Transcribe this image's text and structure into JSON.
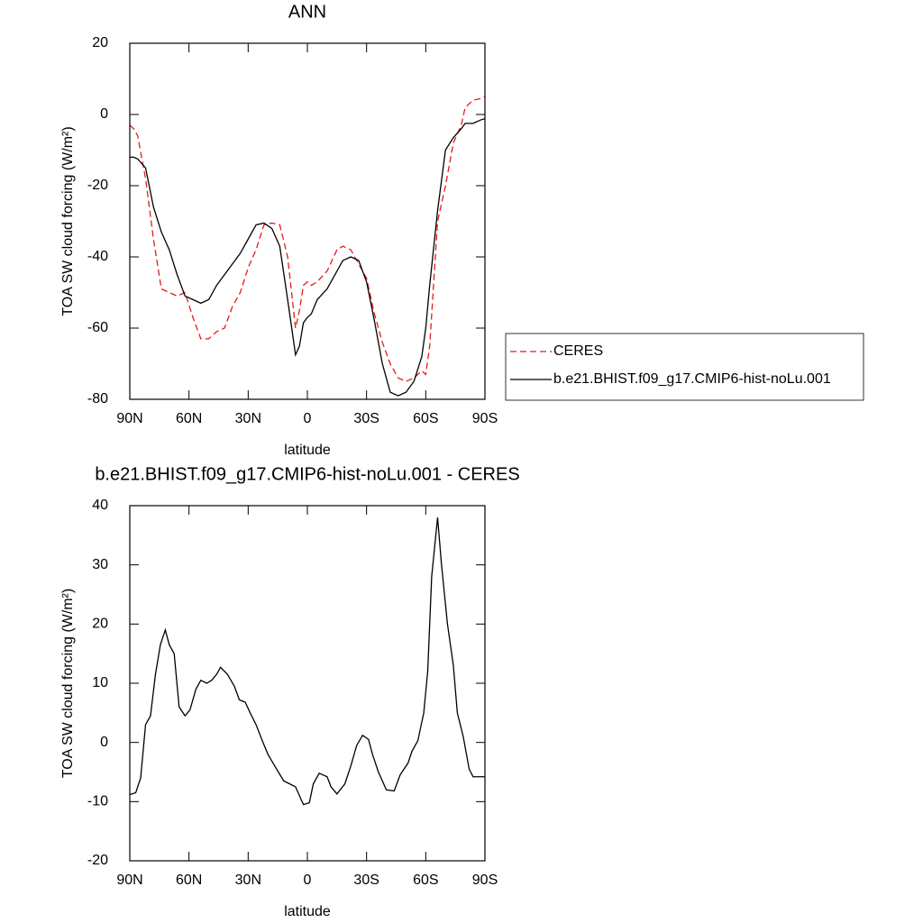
{
  "chart_data": [
    {
      "type": "line",
      "title": "ANN",
      "xlabel": "latitude",
      "ylabel": "TOA SW cloud forcing (W/m²)",
      "x": [
        90,
        88,
        86,
        82,
        78,
        74,
        70,
        66,
        62,
        58,
        54,
        50,
        46,
        42,
        38,
        34,
        30,
        26,
        22,
        18,
        14,
        10,
        6,
        4,
        2,
        0,
        -2,
        -5,
        -10,
        -15,
        -18,
        -22,
        -26,
        -30,
        -34,
        -38,
        -42,
        -46,
        -50,
        -54,
        -58,
        -60,
        -62,
        -66,
        -70,
        -74,
        -78,
        -80,
        -84,
        -88,
        -90
      ],
      "xlim": [
        90,
        -90
      ],
      "xticks": [
        {
          "value": 90,
          "label": "90N"
        },
        {
          "value": 60,
          "label": "60N"
        },
        {
          "value": 30,
          "label": "30N"
        },
        0,
        {
          "value": -30,
          "label": "30S"
        },
        {
          "value": -60,
          "label": "60S"
        },
        {
          "value": -90,
          "label": "90S"
        }
      ],
      "ylim": [
        -80,
        20
      ],
      "yticks": [
        -80,
        -60,
        -40,
        -20,
        0,
        20
      ],
      "legend": "right",
      "series": [
        {
          "name": "CERES",
          "color": "#e41a1c",
          "line_style": "dashed",
          "values": [
            -3,
            -4,
            -6,
            -18,
            -35,
            -49,
            -50,
            -51,
            -50,
            -57,
            -63,
            -63,
            -61,
            -60,
            -54,
            -50,
            -43,
            -38,
            -31,
            -30.5,
            -31,
            -40,
            -60,
            -55,
            -48,
            -47,
            -48,
            -47,
            -44,
            -38,
            -37,
            -38,
            -42,
            -46,
            -56,
            -64,
            -70,
            -74,
            -75,
            -74,
            -72,
            -73,
            -65,
            -30,
            -20,
            -8,
            -3,
            2,
            4,
            4.5,
            5
          ]
        },
        {
          "name": "b.e21.BHIST.f09_g17.CMIP6-hist-noLu.001",
          "color": "#000000",
          "line_style": "solid",
          "values": [
            -12,
            -12,
            -12.5,
            -15,
            -26,
            -33,
            -38,
            -45,
            -51,
            -52,
            -53,
            -52,
            -48,
            -45,
            -42,
            -39,
            -35,
            -31,
            -30.5,
            -32,
            -37,
            -52,
            -67.5,
            -65,
            -58.5,
            -57,
            -56,
            -52,
            -49,
            -44,
            -41,
            -40,
            -41,
            -47,
            -58,
            -70,
            -78,
            -79,
            -78,
            -75,
            -68,
            -60,
            -48,
            -27,
            -10,
            -6.5,
            -4,
            -2.5,
            -2.5,
            -1.5,
            -1.2
          ]
        }
      ]
    },
    {
      "type": "line",
      "title": "b.e21.BHIST.f09_g17.CMIP6-hist-noLu.001 - CERES",
      "xlabel": "latitude",
      "ylabel": "TOA SW cloud forcing (W/m²)",
      "x": [
        90,
        87,
        84.5,
        82,
        79.5,
        77,
        74.5,
        72,
        70,
        67.5,
        65,
        62,
        59.5,
        56.5,
        54,
        51,
        48.5,
        46,
        44,
        40.5,
        37,
        34.5,
        31.5,
        29,
        26,
        22.5,
        20,
        16.5,
        12,
        9,
        6,
        2,
        -1,
        -3,
        -6,
        -10,
        -12,
        -15,
        -19,
        -22,
        -25,
        -28,
        -31,
        -33,
        -36,
        -40,
        -44,
        -47,
        -51,
        -53,
        -56,
        -59,
        -61,
        -63,
        -66,
        -68,
        -71,
        -74,
        -76,
        -79,
        -82,
        -84,
        -90
      ],
      "xlim": [
        90,
        -90
      ],
      "xticks": [
        {
          "value": 90,
          "label": "90N"
        },
        {
          "value": 60,
          "label": "60N"
        },
        {
          "value": 30,
          "label": "30N"
        },
        0,
        {
          "value": -30,
          "label": "30S"
        },
        {
          "value": -60,
          "label": "60S"
        },
        {
          "value": -90,
          "label": "90S"
        }
      ],
      "ylim": [
        -20,
        40
      ],
      "yticks": [
        -20,
        -10,
        0,
        10,
        20,
        30,
        40
      ],
      "series": [
        {
          "color": "#000000",
          "line_style": "solid",
          "values": [
            -8.8,
            -8.5,
            -6,
            3,
            4.5,
            11.5,
            16.5,
            19,
            16.5,
            15,
            6,
            4.5,
            5.5,
            9,
            10.5,
            10,
            10.5,
            11.5,
            12.7,
            11.5,
            9.5,
            7.2,
            6.8,
            5,
            3,
            0,
            -2,
            -4,
            -6.5,
            -7,
            -7.5,
            -10.5,
            -10.2,
            -7,
            -5.2,
            -5.8,
            -7.5,
            -8.7,
            -7,
            -4,
            -0.5,
            1.2,
            0.5,
            -2,
            -5,
            -8,
            -8.2,
            -5.5,
            -3.5,
            -1.5,
            0.3,
            5,
            12,
            28,
            38,
            30,
            20,
            13,
            5,
            1,
            -4.5,
            -5.8,
            -5.8
          ]
        }
      ]
    }
  ]
}
